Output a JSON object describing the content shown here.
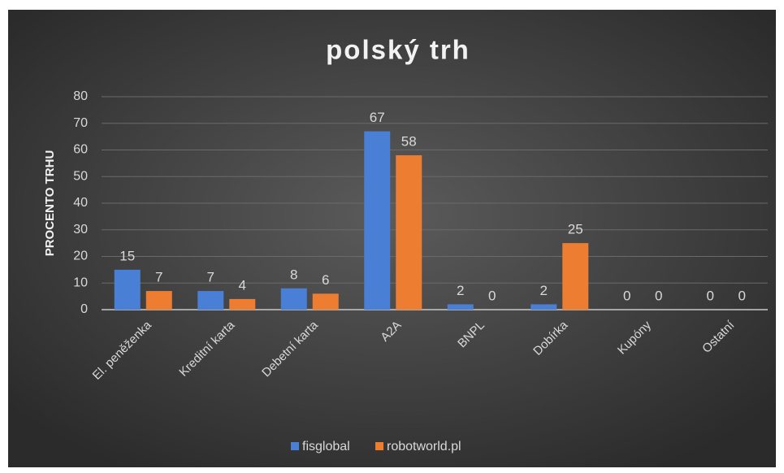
{
  "chart_data": {
    "type": "bar",
    "title": "polský trh",
    "y_label": "PROCENTO TRHU",
    "categories": [
      "El. peněženka",
      "Kreditní karta",
      "Debetní karta",
      "A2A",
      "BNPL",
      "Dobírka",
      "Kupóny",
      "Ostatní"
    ],
    "series": [
      {
        "name": "fisglobal",
        "color": "#4a7fd6",
        "values": [
          15,
          7,
          8,
          67,
          2,
          2,
          0,
          0
        ]
      },
      {
        "name": "robotworld.pl",
        "color": "#ed7d31",
        "values": [
          7,
          4,
          6,
          58,
          0,
          25,
          0,
          0
        ]
      }
    ],
    "ylim": [
      0,
      80
    ],
    "yticks": [
      0,
      10,
      20,
      30,
      40,
      50,
      60,
      70,
      80
    ],
    "grid": true,
    "legend": "bottom"
  }
}
